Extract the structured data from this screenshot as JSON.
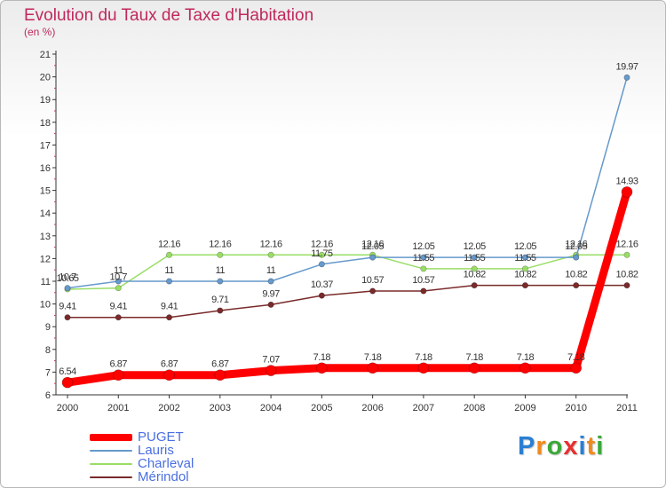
{
  "title": "Evolution du Taux de Taxe d'Habitation",
  "subtitle": "(en %)",
  "brand": {
    "letters": [
      "P",
      "r",
      "o",
      "x",
      "i",
      "t",
      "i"
    ],
    "colors": [
      "#2a7fd4",
      "#f08a1c",
      "#3aa83a",
      "#e83030",
      "#2a7fd4",
      "#f08a1c",
      "#3aa83a"
    ]
  },
  "chart_data": {
    "type": "line",
    "title": "Evolution du Taux de Taxe d'Habitation",
    "ylabel": "(en %)",
    "xlabel": "",
    "x": [
      "2000",
      "2001",
      "2002",
      "2003",
      "2004",
      "2005",
      "2006",
      "2007",
      "2008",
      "2009",
      "2010",
      "2011"
    ],
    "ylim": [
      6,
      21
    ],
    "yticks": [
      "6",
      "7",
      "8",
      "9",
      "10",
      "11",
      "12",
      "13",
      "14",
      "15",
      "16",
      "17",
      "18",
      "19",
      "20",
      "21"
    ],
    "grid": false,
    "legend_position": "bottom-left",
    "series": [
      {
        "name": "Mérindol",
        "color": "#7a2a2a",
        "values": [
          9.41,
          9.41,
          9.41,
          9.71,
          9.97,
          10.37,
          10.57,
          10.57,
          10.82,
          10.82,
          10.82,
          10.82
        ],
        "labels": [
          "9.41",
          "9.41",
          "9.41",
          "9.71",
          "9.97",
          "10.37",
          "10.57",
          "10.57",
          "10.82",
          "10.82",
          "10.82",
          "10.82"
        ]
      },
      {
        "name": "Charleval",
        "color": "#99dd66",
        "values": [
          10.65,
          10.7,
          12.16,
          12.16,
          12.16,
          12.16,
          12.16,
          11.55,
          11.55,
          11.55,
          12.16,
          12.16
        ],
        "labels": [
          "10.65",
          "10.7",
          "12.16",
          "12.16",
          "12.16",
          "12.16",
          "12.16",
          "11.55",
          "11.55",
          "11.55",
          "12.16",
          "12.16"
        ]
      },
      {
        "name": "Lauris",
        "color": "#6699cc",
        "values": [
          10.7,
          11,
          11,
          11,
          11,
          11.75,
          12.05,
          12.05,
          12.05,
          12.05,
          12.05,
          19.97
        ],
        "labels": [
          "10.7",
          "11",
          "11",
          "11",
          "11",
          "11.75",
          "12.05",
          "12.05",
          "12.05",
          "12.05",
          "12.05",
          "19.97"
        ]
      },
      {
        "name": "PUGET",
        "color": "#ff0000",
        "values": [
          6.54,
          6.87,
          6.87,
          6.87,
          7.07,
          7.18,
          7.18,
          7.18,
          7.18,
          7.18,
          7.18,
          14.93
        ],
        "labels": [
          "6.54",
          "6.87",
          "6.87",
          "6.87",
          "7.07",
          "7.18",
          "7.18",
          "7.18",
          "7.18",
          "7.18",
          "7.18",
          "14.93"
        ]
      }
    ]
  },
  "legend": [
    {
      "name": "PUGET",
      "color": "#ff0000"
    },
    {
      "name": "Lauris",
      "color": "#6699cc"
    },
    {
      "name": "Charleval",
      "color": "#99dd66"
    },
    {
      "name": "Mérindol",
      "color": "#7a2a2a"
    }
  ]
}
